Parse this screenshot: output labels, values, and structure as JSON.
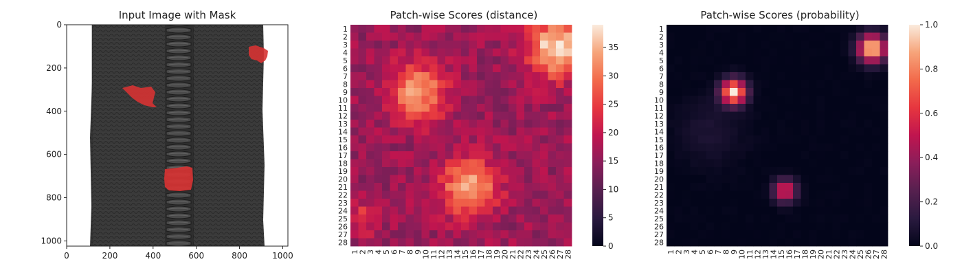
{
  "panels": {
    "image": {
      "title": "Input Image with Mask",
      "x_ticks": [
        "0",
        "200",
        "400",
        "600",
        "800",
        "1000"
      ],
      "y_ticks": [
        "0",
        "200",
        "400",
        "600",
        "800",
        "1000"
      ]
    },
    "distance": {
      "title": "Patch-wise Scores (distance)",
      "colorbar_ticks": [
        "0",
        "5",
        "10",
        "15",
        "20",
        "25",
        "30",
        "35"
      ]
    },
    "probability": {
      "title": "Patch-wise Scores (probability)",
      "colorbar_ticks": [
        "0.0",
        "0.2",
        "0.4",
        "0.6",
        "0.8",
        "1.0"
      ]
    }
  },
  "chart_data": [
    {
      "type": "image",
      "title": "Input Image with Mask",
      "content": "zipper image with red mask regions",
      "xlim": [
        0,
        1024
      ],
      "ylim": [
        1024,
        0
      ],
      "x_ticks": [
        0,
        200,
        400,
        600,
        800,
        1000
      ],
      "y_ticks": [
        0,
        200,
        400,
        600,
        800,
        1000
      ],
      "mask_regions_approx": [
        {
          "x": [
            260,
            410
          ],
          "y": [
            280,
            370
          ]
        },
        {
          "x": [
            830,
            920
          ],
          "y": [
            100,
            170
          ]
        },
        {
          "x": [
            450,
            580
          ],
          "y": [
            630,
            760
          ]
        }
      ]
    },
    {
      "type": "heatmap",
      "title": "Patch-wise Scores (distance)",
      "rows": [
        "1",
        "2",
        "3",
        "4",
        "5",
        "6",
        "7",
        "8",
        "9",
        "10",
        "11",
        "12",
        "13",
        "14",
        "15",
        "16",
        "17",
        "18",
        "19",
        "20",
        "21",
        "22",
        "23",
        "24",
        "25",
        "26",
        "27",
        "28"
      ],
      "cols": [
        "1",
        "2",
        "3",
        "4",
        "5",
        "6",
        "7",
        "8",
        "9",
        "10",
        "11",
        "12",
        "13",
        "14",
        "15",
        "16",
        "17",
        "18",
        "19",
        "20",
        "21",
        "22",
        "23",
        "24",
        "25",
        "26",
        "27",
        "28"
      ],
      "colorbar_range": [
        0,
        39
      ],
      "colorbar_ticks": [
        0,
        5,
        10,
        15,
        20,
        25,
        30,
        35
      ],
      "baseline": 16,
      "hotspots": [
        {
          "row": 3.5,
          "col": 26.5,
          "peak": 39,
          "spread": 2.5
        },
        {
          "row": 9.0,
          "col": 9.0,
          "peak": 34,
          "spread": 2.5
        },
        {
          "row": 21.0,
          "col": 15.5,
          "peak": 35,
          "spread": 2.5
        },
        {
          "row": 25.0,
          "col": 2.0,
          "peak": 24,
          "spread": 1.5
        }
      ]
    },
    {
      "type": "heatmap",
      "title": "Patch-wise Scores (probability)",
      "rows": [
        "1",
        "2",
        "3",
        "4",
        "5",
        "6",
        "7",
        "8",
        "9",
        "10",
        "11",
        "12",
        "13",
        "14",
        "15",
        "16",
        "17",
        "18",
        "19",
        "20",
        "21",
        "22",
        "23",
        "24",
        "25",
        "26",
        "27",
        "28"
      ],
      "cols": [
        "1",
        "2",
        "3",
        "4",
        "5",
        "6",
        "7",
        "8",
        "9",
        "10",
        "11",
        "12",
        "13",
        "14",
        "15",
        "16",
        "17",
        "18",
        "19",
        "20",
        "21",
        "22",
        "23",
        "24",
        "25",
        "26",
        "27",
        "28"
      ],
      "colorbar_range": [
        0.0,
        1.0
      ],
      "colorbar_ticks": [
        0.0,
        0.2,
        0.4,
        0.6,
        0.8,
        1.0
      ],
      "baseline": 0.0,
      "hotspots": [
        {
          "row": 3.5,
          "col": 26.5,
          "peak": 1.0,
          "spread": 1.2
        },
        {
          "row": 9.0,
          "col": 9.0,
          "peak": 1.0,
          "spread": 1.1
        },
        {
          "row": 21.5,
          "col": 15.5,
          "peak": 0.6,
          "spread": 1.0
        },
        {
          "row": 14.0,
          "col": 6.0,
          "peak": 0.08,
          "spread": 3.0
        }
      ]
    }
  ]
}
